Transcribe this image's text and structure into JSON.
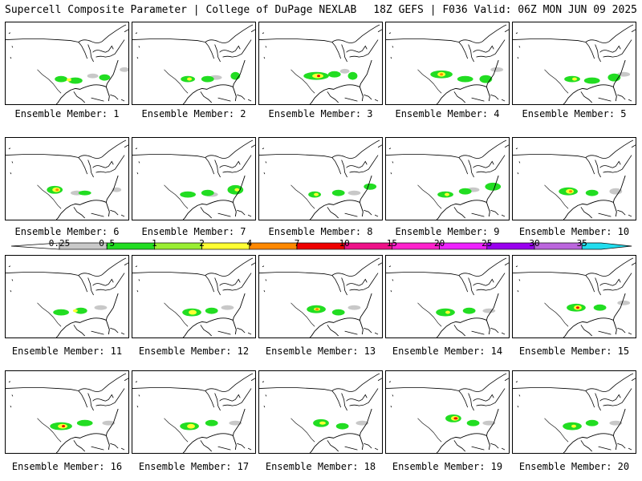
{
  "header": {
    "title": "Supercell Composite Parameter | College of DuPage NEXLAB",
    "run_info": "18Z GEFS | F036 Valid: 06Z MON JUN 09 2025"
  },
  "caption_prefix": "Ensemble Member: ",
  "members": [
    {
      "id": 1,
      "label": "Ensemble Member: 1"
    },
    {
      "id": 2,
      "label": "Ensemble Member: 2"
    },
    {
      "id": 3,
      "label": "Ensemble Member: 3"
    },
    {
      "id": 4,
      "label": "Ensemble Member: 4"
    },
    {
      "id": 5,
      "label": "Ensemble Member: 5"
    },
    {
      "id": 6,
      "label": "Ensemble Member: 6"
    },
    {
      "id": 7,
      "label": "Ensemble Member: 7"
    },
    {
      "id": 8,
      "label": "Ensemble Member: 8"
    },
    {
      "id": 9,
      "label": "Ensemble Member: 9"
    },
    {
      "id": 10,
      "label": "Ensemble Member: 10"
    },
    {
      "id": 11,
      "label": "Ensemble Member: 11"
    },
    {
      "id": 12,
      "label": "Ensemble Member: 12"
    },
    {
      "id": 13,
      "label": "Ensemble Member: 13"
    },
    {
      "id": 14,
      "label": "Ensemble Member: 14"
    },
    {
      "id": 15,
      "label": "Ensemble Member: 15"
    },
    {
      "id": 16,
      "label": "Ensemble Member: 16"
    },
    {
      "id": 17,
      "label": "Ensemble Member: 17"
    },
    {
      "id": 18,
      "label": "Ensemble Member: 18"
    },
    {
      "id": 19,
      "label": "Ensemble Member: 19"
    },
    {
      "id": 20,
      "label": "Ensemble Member: 20"
    }
  ],
  "colorbar": {
    "levels": [
      "0.25",
      "0.5",
      "1",
      "2",
      "4",
      "7",
      "10",
      "15",
      "20",
      "25",
      "30",
      "35"
    ],
    "colors": [
      "#c8c8c8",
      "#22dd22",
      "#99ee33",
      "#ffff33",
      "#ff8800",
      "#ee0000",
      "#ee1188",
      "#ff22cc",
      "#ee22ff",
      "#9900ee",
      "#bb66dd",
      "#22ddee"
    ]
  }
}
